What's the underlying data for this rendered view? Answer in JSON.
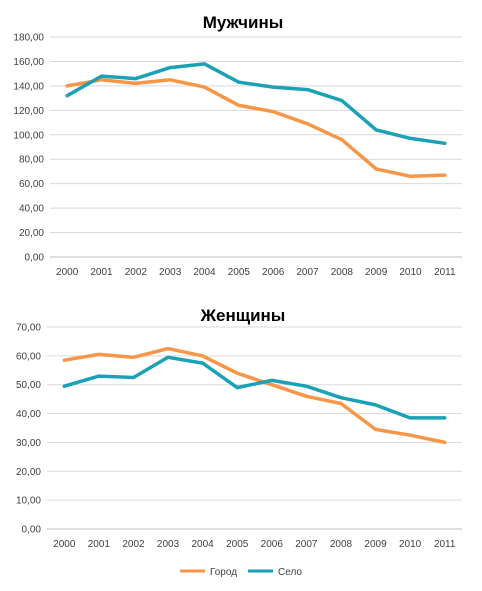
{
  "colors": {
    "city": "#f79646",
    "village": "#1aa1b5"
  },
  "legend": {
    "city": "Город",
    "village": "Село"
  },
  "chart_data": [
    {
      "type": "line",
      "title": "Мужчины",
      "xlabel": "",
      "ylabel": "",
      "categories": [
        "2000",
        "2001",
        "2002",
        "2003",
        "2004",
        "2005",
        "2006",
        "2007",
        "2008",
        "2009",
        "2010",
        "2011"
      ],
      "ylim": [
        0,
        180
      ],
      "yticks": [
        0,
        20,
        40,
        60,
        80,
        100,
        120,
        140,
        160,
        180
      ],
      "ytick_labels": [
        "0,00",
        "20,00",
        "40,00",
        "60,00",
        "80,00",
        "100,00",
        "120,00",
        "140,00",
        "160,00",
        "180,00"
      ],
      "grid": true,
      "legend": "bottom",
      "series": [
        {
          "name": "Город",
          "color": "#f79646",
          "values": [
            140,
            145,
            142,
            145,
            139,
            124,
            119,
            109,
            96,
            72,
            66,
            67
          ]
        },
        {
          "name": "Село",
          "color": "#1aa1b5",
          "values": [
            132,
            148,
            146,
            155,
            158,
            143,
            139,
            137,
            128,
            104,
            97,
            93
          ]
        }
      ]
    },
    {
      "type": "line",
      "title": "Женщины",
      "xlabel": "",
      "ylabel": "",
      "categories": [
        "2000",
        "2001",
        "2002",
        "2003",
        "2004",
        "2005",
        "2006",
        "2007",
        "2008",
        "2009",
        "2010",
        "2011"
      ],
      "ylim": [
        0,
        70
      ],
      "yticks": [
        0,
        10,
        20,
        30,
        40,
        50,
        60,
        70
      ],
      "ytick_labels": [
        "0,00",
        "10,00",
        "20,00",
        "30,00",
        "40,00",
        "50,00",
        "60,00",
        "70,00"
      ],
      "grid": true,
      "legend": "bottom",
      "series": [
        {
          "name": "Город",
          "color": "#f79646",
          "values": [
            58.5,
            60.5,
            59.5,
            62.5,
            60,
            54,
            50,
            46,
            43.5,
            34.5,
            32.5,
            30
          ]
        },
        {
          "name": "Село",
          "color": "#1aa1b5",
          "values": [
            49.5,
            53,
            52.5,
            59.5,
            57.5,
            49,
            51.5,
            49.5,
            45.5,
            43,
            38.5,
            38.5
          ]
        }
      ]
    }
  ]
}
